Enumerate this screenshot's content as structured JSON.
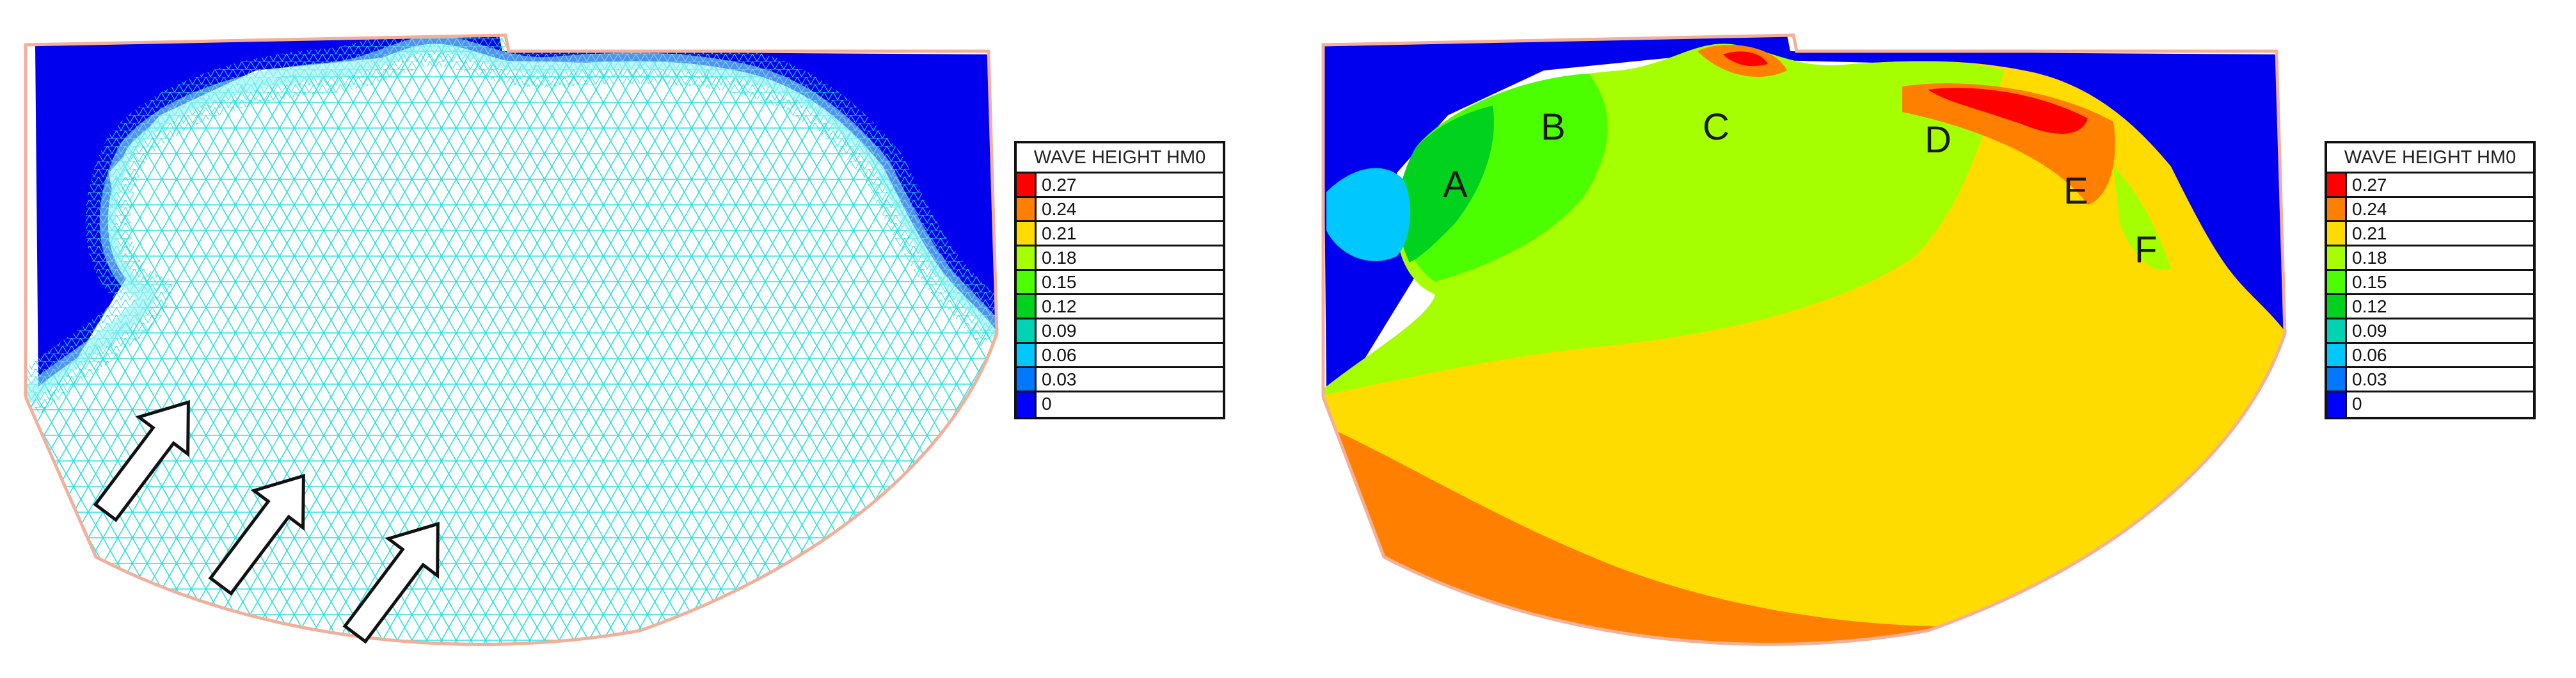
{
  "legend": {
    "title": "WAVE HEIGHT HM0",
    "levels": [
      {
        "label": "0.27",
        "color": "#ff0000"
      },
      {
        "label": "0.24",
        "color": "#ff7f00"
      },
      {
        "label": "0.21",
        "color": "#ffdc00"
      },
      {
        "label": "0.18",
        "color": "#a5ff00"
      },
      {
        "label": "0.15",
        "color": "#4cff00"
      },
      {
        "label": "0.12",
        "color": "#00d21e"
      },
      {
        "label": "0.09",
        "color": "#00d2b4"
      },
      {
        "label": "0.06",
        "color": "#00c8ff"
      },
      {
        "label": "0.03",
        "color": "#0078ff"
      },
      {
        "label": "0",
        "color": "#0000ff"
      }
    ]
  },
  "zones": [
    "A",
    "B",
    "C",
    "D",
    "E",
    "F"
  ],
  "colors": {
    "land": "#0000ee",
    "mesh": "#2ee0e0",
    "boundary": "#f2b09a",
    "arrow_stroke": "#111111"
  }
}
